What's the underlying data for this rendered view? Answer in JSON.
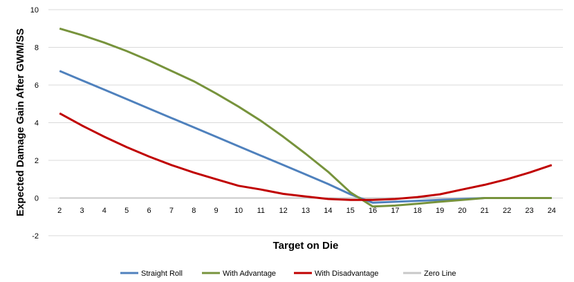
{
  "chart_data": {
    "type": "line",
    "xlabel": "Target on Die",
    "ylabel": "Expected Damage Gain After GWM/SS",
    "ylim": [
      -2,
      10
    ],
    "yticks": [
      -2,
      0,
      2,
      4,
      6,
      8,
      10
    ],
    "categories": [
      "2",
      "3",
      "4",
      "5",
      "6",
      "7",
      "8",
      "9",
      "10",
      "11",
      "12",
      "13",
      "14",
      "15",
      "16",
      "17",
      "18",
      "19",
      "20",
      "21",
      "22",
      "23",
      "24"
    ],
    "grid": "horizontal",
    "legend_position": "bottom",
    "series": [
      {
        "name": "Straight Roll",
        "color": "#4f81bd",
        "values": [
          6.75,
          6.25,
          5.75,
          5.25,
          4.75,
          4.25,
          3.75,
          3.25,
          2.75,
          2.25,
          1.75,
          1.25,
          0.75,
          0.2,
          -0.25,
          -0.2,
          -0.15,
          -0.1,
          -0.05,
          0,
          0,
          0,
          0
        ]
      },
      {
        "name": "With Advantage",
        "color": "#77933c",
        "values": [
          9.0,
          8.65,
          8.25,
          7.8,
          7.3,
          6.75,
          6.2,
          5.55,
          4.85,
          4.1,
          3.25,
          2.35,
          1.4,
          0.3,
          -0.45,
          -0.4,
          -0.3,
          -0.2,
          -0.1,
          0,
          0,
          0,
          0
        ]
      },
      {
        "name": "With Disadvantage",
        "color": "#c00000",
        "values": [
          4.5,
          3.85,
          3.25,
          2.7,
          2.2,
          1.75,
          1.35,
          1.0,
          0.65,
          0.45,
          0.22,
          0.08,
          -0.05,
          -0.1,
          -0.1,
          -0.05,
          0.05,
          0.2,
          0.45,
          0.7,
          1.0,
          1.35,
          1.75
        ]
      },
      {
        "name": "Zero Line",
        "color": "#c8c8c8",
        "values": [
          0,
          0,
          0,
          0,
          0,
          0,
          0,
          0,
          0,
          0,
          0,
          0,
          0,
          0,
          0,
          0,
          0,
          0,
          0,
          0,
          0,
          0,
          0
        ]
      }
    ]
  }
}
